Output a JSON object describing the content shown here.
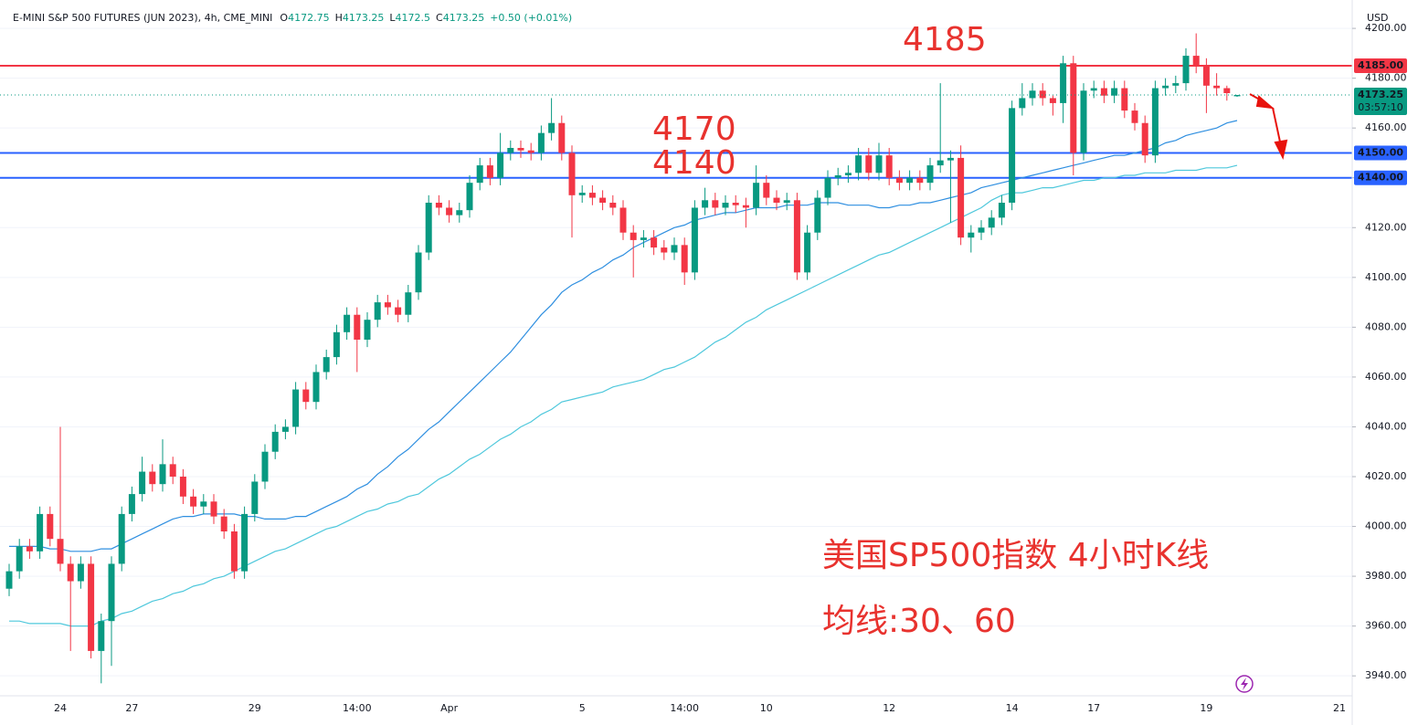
{
  "header": {
    "symbol": "E-MINI S&P 500 FUTURES (JUN 2023), 4h, CME_MINI",
    "ohlc_letters": [
      "O",
      "H",
      "L",
      "C"
    ],
    "change": "+0.50 (+0.01%)"
  },
  "chart_data": {
    "type": "candlestick",
    "currency": "USD",
    "categories": [
      null,
      null,
      null,
      null,
      null,
      "24",
      null,
      null,
      null,
      null,
      null,
      null,
      "27",
      null,
      null,
      null,
      null,
      null,
      null,
      null,
      null,
      null,
      null,
      null,
      "29",
      null,
      null,
      null,
      null,
      null,
      null,
      null,
      null,
      null,
      "14:00",
      null,
      null,
      null,
      null,
      null,
      null,
      null,
      null,
      "Apr",
      null,
      null,
      null,
      null,
      null,
      null,
      null,
      null,
      null,
      null,
      null,
      null,
      "5",
      null,
      null,
      null,
      null,
      null,
      null,
      null,
      null,
      null,
      "14:00",
      null,
      null,
      null,
      null,
      null,
      null,
      null,
      "10",
      null,
      null,
      null,
      null,
      null,
      null,
      null,
      null,
      null,
      null,
      null,
      "12",
      null,
      null,
      null,
      null,
      null,
      null,
      null,
      null,
      null,
      null,
      null,
      "14",
      null,
      null,
      null,
      null,
      null,
      null,
      null,
      "17",
      null,
      null,
      null,
      null,
      null,
      null,
      null,
      null,
      null,
      null,
      "19",
      null,
      null,
      null,
      null,
      null,
      null,
      null,
      null,
      null,
      null,
      null,
      null,
      "21"
    ],
    "open": [
      3975,
      3982,
      3992,
      3990,
      4005,
      3995,
      3985,
      3978,
      3985,
      3950,
      3962,
      3985,
      4005,
      4013,
      4022,
      4017,
      4025,
      4020,
      4012,
      4008,
      4010,
      4004,
      3998,
      3982,
      4005,
      4018,
      4030,
      4038,
      4040,
      4055,
      4050,
      4062,
      4068,
      4078,
      4085,
      4075,
      4083,
      4090,
      4088,
      4085,
      4094,
      4110,
      4130,
      4128,
      4125,
      4127,
      4138,
      4145,
      4140,
      4150,
      4152,
      4151,
      4150,
      4158,
      4162,
      4150,
      4133,
      4134,
      4132,
      4130,
      4128,
      4118,
      4115,
      4116,
      4112,
      4110,
      4113,
      4102,
      4128,
      4131,
      4128,
      4130,
      4129,
      4128,
      4138,
      4132,
      4130,
      4131,
      4102,
      4118,
      4132,
      4140,
      4141,
      4142,
      4149,
      4142,
      4149,
      4140,
      4138,
      4140,
      4138,
      4145,
      4147,
      4148,
      4116,
      4118,
      4120,
      4124,
      4130,
      4168,
      4172,
      4175,
      4172,
      4170,
      4186,
      4150,
      4175,
      4176,
      4173,
      4176,
      4167,
      4162,
      4149,
      4176,
      4177,
      4178,
      4189,
      4185,
      4177,
      4176,
      4172.75,
      null,
      null,
      null,
      null,
      null,
      null,
      null,
      null,
      null,
      null
    ],
    "high": [
      3985,
      3995,
      3995,
      4008,
      4008,
      4040,
      3988,
      3988,
      3988,
      3965,
      3988,
      4008,
      4016,
      4028,
      4025,
      4035,
      4028,
      4023,
      4015,
      4013,
      4013,
      4007,
      4001,
      4008,
      4021,
      4033,
      4041,
      4043,
      4058,
      4058,
      4065,
      4071,
      4081,
      4088,
      4088,
      4086,
      4093,
      4093,
      4091,
      4097,
      4113,
      4133,
      4133,
      4131,
      4130,
      4141,
      4148,
      4148,
      4158,
      4155,
      4155,
      4154,
      4161,
      4172,
      4165,
      4153,
      4137,
      4137,
      4135,
      4133,
      4131,
      4121,
      4119,
      4119,
      4115,
      4116,
      4116,
      4131,
      4136,
      4134,
      4133,
      4133,
      4132,
      4145,
      4141,
      4135,
      4134,
      4134,
      4121,
      4135,
      4143,
      4144,
      4145,
      4152,
      4152,
      4154,
      4152,
      4143,
      4143,
      4143,
      4148,
      4178,
      4151,
      4153,
      4121,
      4123,
      4127,
      4133,
      4171,
      4178,
      4178,
      4178,
      4173,
      4189,
      4189,
      4178,
      4179,
      4179,
      4179,
      4179,
      4170,
      4165,
      4179,
      4180,
      4181,
      4192,
      4198,
      4188,
      4182,
      4177,
      4173.25,
      null,
      null,
      null,
      null,
      null,
      null,
      null,
      null,
      null,
      null
    ],
    "low": [
      3972,
      3979,
      3987,
      3987,
      3992,
      3982,
      3950,
      3975,
      3947,
      3937,
      3944,
      3982,
      4002,
      4010,
      4014,
      4014,
      4017,
      4009,
      4005,
      4005,
      4001,
      3995,
      3979,
      3979,
      4002,
      4015,
      4027,
      4035,
      4037,
      4047,
      4047,
      4059,
      4065,
      4075,
      4062,
      4072,
      4080,
      4085,
      4082,
      4082,
      4091,
      4107,
      4125,
      4122,
      4122,
      4124,
      4135,
      4137,
      4137,
      4147,
      4148,
      4147,
      4147,
      4155,
      4147,
      4116,
      4130,
      4129,
      4127,
      4125,
      4115,
      4100,
      4112,
      4109,
      4107,
      4107,
      4097,
      4099,
      4125,
      4125,
      4125,
      4126,
      4120,
      4125,
      4129,
      4127,
      4127,
      4099,
      4099,
      4115,
      4129,
      4137,
      4138,
      4139,
      4139,
      4139,
      4137,
      4135,
      4135,
      4135,
      4135,
      4142,
      4122,
      4113,
      4110,
      4115,
      4117,
      4121,
      4127,
      4165,
      4169,
      4169,
      4165,
      4162,
      4141,
      4147,
      4172,
      4170,
      4170,
      4164,
      4159,
      4146,
      4146,
      4173,
      4174,
      4175,
      4182,
      4166,
      4173,
      4171,
      4172.5,
      null,
      null,
      null,
      null,
      null,
      null,
      null,
      null,
      null,
      null
    ],
    "close": [
      3982,
      3992,
      3990,
      4005,
      3995,
      3985,
      3978,
      3985,
      3950,
      3962,
      3985,
      4005,
      4013,
      4022,
      4017,
      4025,
      4020,
      4012,
      4008,
      4010,
      4004,
      3998,
      3982,
      4005,
      4018,
      4030,
      4038,
      4040,
      4055,
      4050,
      4062,
      4068,
      4078,
      4085,
      4075,
      4083,
      4090,
      4088,
      4085,
      4094,
      4110,
      4130,
      4128,
      4125,
      4127,
      4138,
      4145,
      4140,
      4150,
      4152,
      4151,
      4150,
      4158,
      4162,
      4150,
      4133,
      4134,
      4132,
      4130,
      4128,
      4118,
      4115,
      4116,
      4112,
      4110,
      4113,
      4102,
      4128,
      4131,
      4128,
      4130,
      4129,
      4128,
      4138,
      4132,
      4130,
      4131,
      4102,
      4118,
      4132,
      4140,
      4141,
      4142,
      4149,
      4142,
      4149,
      4140,
      4138,
      4140,
      4138,
      4145,
      4147,
      4148,
      4116,
      4118,
      4120,
      4124,
      4130,
      4168,
      4172,
      4175,
      4172,
      4170,
      4186,
      4150,
      4175,
      4176,
      4173,
      4176,
      4167,
      4162,
      4149,
      4176,
      4177,
      4178,
      4189,
      4185,
      4177,
      4176,
      4174,
      4173.25,
      null,
      null,
      null,
      null,
      null,
      null,
      null,
      null,
      null,
      null
    ],
    "up_color": "#089981",
    "down_color": "#f23645",
    "series": [
      {
        "color": "#2f8fe0",
        "values": [
          3992,
          3992,
          3992,
          3992,
          3991,
          3991,
          3990,
          3990,
          3990,
          3991,
          3991,
          3993,
          3995,
          3997,
          3999,
          4001,
          4003,
          4004,
          4004,
          4005,
          4005,
          4005,
          4005,
          4004,
          4004,
          4003,
          4003,
          4003,
          4004,
          4004,
          4006,
          4008,
          4010,
          4012,
          4015,
          4017,
          4021,
          4024,
          4028,
          4031,
          4035,
          4039,
          4042,
          4046,
          4050,
          4054,
          4058,
          4062,
          4066,
          4070,
          4075,
          4080,
          4085,
          4089,
          4094,
          4097,
          4099,
          4102,
          4104,
          4107,
          4109,
          4112,
          4114,
          4116,
          4118,
          4120,
          4121,
          4123,
          4124,
          4125,
          4126,
          4126,
          4127,
          4128,
          4128,
          4128,
          4129,
          4129,
          4129,
          4130,
          4130,
          4130,
          4129,
          4129,
          4129,
          4128,
          4128,
          4129,
          4129,
          4130,
          4130,
          4131,
          4132,
          4133,
          4134,
          4136,
          4137,
          4138,
          4139,
          4140,
          4141,
          4142,
          4143,
          4144,
          4145,
          4146,
          4147,
          4148,
          4149,
          4149,
          4150,
          4151,
          4152,
          4154,
          4155,
          4157,
          4158,
          4159,
          4160,
          4162,
          4163,
          null,
          null,
          null,
          null,
          null,
          null,
          null,
          null,
          null,
          null
        ]
      },
      {
        "color": "#4fc8dc",
        "values": [
          3962,
          3962,
          3961,
          3961,
          3961,
          3961,
          3960,
          3960,
          3960,
          3962,
          3963,
          3965,
          3966,
          3968,
          3970,
          3971,
          3973,
          3974,
          3976,
          3977,
          3979,
          3980,
          3982,
          3984,
          3986,
          3988,
          3990,
          3991,
          3993,
          3995,
          3997,
          3999,
          4000,
          4002,
          4004,
          4006,
          4007,
          4009,
          4010,
          4012,
          4013,
          4016,
          4019,
          4021,
          4024,
          4027,
          4029,
          4032,
          4035,
          4037,
          4040,
          4042,
          4045,
          4047,
          4050,
          4051,
          4052,
          4053,
          4054,
          4056,
          4057,
          4058,
          4059,
          4061,
          4063,
          4064,
          4066,
          4068,
          4071,
          4074,
          4076,
          4079,
          4082,
          4084,
          4087,
          4089,
          4091,
          4093,
          4095,
          4097,
          4099,
          4101,
          4103,
          4105,
          4107,
          4109,
          4110,
          4112,
          4114,
          4116,
          4118,
          4120,
          4122,
          4124,
          4126,
          4128,
          4131,
          4133,
          4134,
          4134,
          4135,
          4136,
          4136,
          4137,
          4138,
          4139,
          4139,
          4140,
          4140,
          4141,
          4141,
          4142,
          4142,
          4142,
          4143,
          4143,
          4143,
          4144,
          4144,
          4144,
          4145,
          null,
          null,
          null,
          null,
          null,
          null,
          null,
          null,
          null,
          null
        ]
      }
    ],
    "levels": [
      {
        "value": 4185,
        "label": "4185.00",
        "color": "#f23645"
      },
      {
        "value": 4150,
        "label": "4150.00",
        "color": "#2962ff"
      },
      {
        "value": 4140,
        "label": "4140.00",
        "color": "#2962ff"
      }
    ],
    "countdown": "03:57:10",
    "ylim": [
      3932,
      4211.4
    ],
    "yticks": [
      {
        "value": 3940,
        "label": "3940.00"
      },
      {
        "value": 3960,
        "label": "3960.00"
      },
      {
        "value": 3980,
        "label": "3980.00"
      },
      {
        "value": 4000,
        "label": "4000.00"
      },
      {
        "value": 4020,
        "label": "4020.00"
      },
      {
        "value": 4040,
        "label": "4040.00"
      },
      {
        "value": 4060,
        "label": "4060.00"
      },
      {
        "value": 4080,
        "label": "4080.00"
      },
      {
        "value": 4100,
        "label": "4100.00"
      },
      {
        "value": 4120,
        "label": "4120.00"
      },
      {
        "value": 4140,
        "label": "4140.00"
      },
      {
        "value": 4160,
        "label": "4160.00"
      },
      {
        "value": 4180,
        "label": "4180.00"
      },
      {
        "value": 4200,
        "label": "4200.00"
      }
    ],
    "grid": true,
    "annotations": [
      "4185",
      "4170",
      "4140",
      "美国SP500指数 4小时K线",
      "均线:30、60"
    ]
  }
}
